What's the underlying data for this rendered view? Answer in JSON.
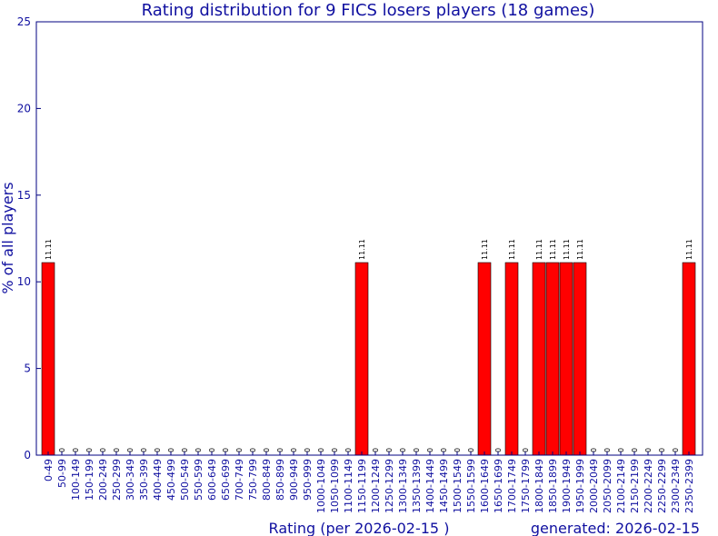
{
  "chart_data": {
    "type": "bar",
    "title": "Rating distribution for 9 FICS losers players (18 games)",
    "xlabel": "Rating (per 2026-02-15 )",
    "ylabel": "% of all players",
    "footer": "generated: 2026-02-15",
    "ylim": [
      0,
      25
    ],
    "yticks": [
      "0",
      "5",
      "10",
      "15",
      "20",
      "25"
    ],
    "bar_color": "#ff0000",
    "axis_color": "#000080",
    "text_color": "#1010a0",
    "categories": [
      "0-49",
      "50-99",
      "100-149",
      "150-199",
      "200-249",
      "250-299",
      "300-349",
      "350-399",
      "400-449",
      "450-499",
      "500-549",
      "550-599",
      "600-649",
      "650-699",
      "700-749",
      "750-799",
      "800-849",
      "850-899",
      "900-949",
      "950-999",
      "1000-1049",
      "1050-1099",
      "1100-1149",
      "1150-1199",
      "1200-1249",
      "1250-1299",
      "1300-1349",
      "1350-1399",
      "1400-1449",
      "1450-1499",
      "1500-1549",
      "1550-1599",
      "1600-1649",
      "1650-1699",
      "1700-1749",
      "1750-1799",
      "1800-1849",
      "1850-1899",
      "1900-1949",
      "1950-1999",
      "2000-2049",
      "2050-2099",
      "2100-2149",
      "2150-2199",
      "2200-2249",
      "2250-2299",
      "2300-2349",
      "2350-2399"
    ],
    "values": [
      11.11,
      0,
      0,
      0,
      0,
      0,
      0,
      0,
      0,
      0,
      0,
      0,
      0,
      0,
      0,
      0,
      0,
      0,
      0,
      0,
      0,
      0,
      0,
      11.11,
      0,
      0,
      0,
      0,
      0,
      0,
      0,
      0,
      11.11,
      0,
      11.11,
      0,
      11.11,
      11.11,
      11.11,
      11.11,
      0,
      0,
      0,
      0,
      0,
      0,
      0,
      11.11
    ],
    "data_labels": [
      "11.11",
      "0",
      "0",
      "0",
      "0",
      "0",
      "0",
      "0",
      "0",
      "0",
      "0",
      "0",
      "0",
      "0",
      "0",
      "0",
      "0",
      "0",
      "0",
      "0",
      "0",
      "0",
      "0",
      "11.11",
      "0",
      "0",
      "0",
      "0",
      "0",
      "0",
      "0",
      "0",
      "11.11",
      "0",
      "11.11",
      "0",
      "11.11",
      "11.11",
      "11.11",
      "11.11",
      "0",
      "0",
      "0",
      "0",
      "0",
      "0",
      "0",
      "11.11"
    ]
  }
}
